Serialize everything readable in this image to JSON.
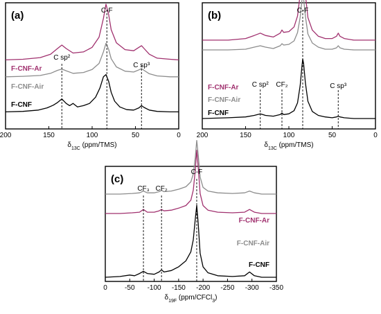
{
  "panels": [
    {
      "panel_label": "(a)",
      "xlabel_sym": "δ",
      "xlabel_sub": "13C",
      "xlabel_unit": " (ppm/TMS)",
      "peak_labels": [
        {
          "text": "C sp²",
          "x": 135
        },
        {
          "text": "C-F",
          "x": 83
        },
        {
          "text": "C sp³",
          "x": 43
        }
      ],
      "dashed_x": [
        135,
        83,
        43
      ],
      "series_labels": [
        "F-CNF-Ar",
        "F-CNF-Air",
        "F-CNF"
      ]
    },
    {
      "panel_label": "(b)",
      "xlabel_sym": "δ",
      "xlabel_sub": "13C",
      "xlabel_unit": " (ppm/TMS)",
      "peak_labels": [
        {
          "text": "C sp²",
          "x": 133
        },
        {
          "text": "CF₂",
          "x": 108
        },
        {
          "text": "C-F",
          "x": 84
        },
        {
          "text": "C sp³",
          "x": 43
        }
      ],
      "dashed_x": [
        133,
        108,
        84,
        43
      ],
      "series_labels": [
        "F-CNF-Ar",
        "F-CNF-Air",
        "F-CNF"
      ]
    },
    {
      "panel_label": "(c)",
      "xlabel_sym": "δ",
      "xlabel_sub": "19F",
      "xlabel_unit": " (ppm/CFCl",
      "xlabel_sub2": "3",
      "xlabel_end": ")",
      "peak_labels": [
        {
          "text": "CF₃",
          "x": -78
        },
        {
          "text": "CF₂",
          "x": -115
        },
        {
          "text": "C-F",
          "x": -187
        }
      ],
      "dashed_x": [
        -78,
        -115,
        -187
      ],
      "series_labels": [
        "F-CNF-Ar",
        "F-CNF-Air",
        "F-CNF"
      ]
    }
  ],
  "colors": {
    "F-CNF-Ar": "#a0306e",
    "F-CNF-Air": "#8c8c8c",
    "F-CNF": "#000000"
  },
  "chart_data": [
    {
      "type": "line",
      "xlim": [
        200,
        0
      ],
      "xticks": [
        200,
        150,
        100,
        50,
        0
      ],
      "series": [
        {
          "name": "F-CNF-Ar",
          "x": [
            200,
            180,
            160,
            148,
            140,
            135,
            130,
            122,
            110,
            100,
            92,
            87,
            84,
            81,
            78,
            72,
            62,
            52,
            46,
            43,
            40,
            34,
            25,
            10,
            0
          ],
          "y": [
            0.02,
            0.03,
            0.06,
            0.12,
            0.22,
            0.28,
            0.22,
            0.14,
            0.16,
            0.24,
            0.42,
            0.75,
            1.0,
            0.82,
            0.55,
            0.32,
            0.2,
            0.18,
            0.24,
            0.27,
            0.22,
            0.12,
            0.05,
            0.03,
            0.02
          ]
        },
        {
          "name": "F-CNF-Air",
          "x": [
            200,
            180,
            160,
            148,
            140,
            135,
            130,
            122,
            110,
            100,
            92,
            87,
            84,
            81,
            78,
            72,
            62,
            52,
            46,
            43,
            40,
            34,
            25,
            10,
            0
          ],
          "y": [
            0.02,
            0.03,
            0.05,
            0.1,
            0.17,
            0.2,
            0.16,
            0.1,
            0.12,
            0.19,
            0.33,
            0.6,
            0.8,
            0.66,
            0.44,
            0.25,
            0.15,
            0.13,
            0.18,
            0.21,
            0.17,
            0.09,
            0.04,
            0.02,
            0.02
          ]
        },
        {
          "name": "F-CNF",
          "x": [
            200,
            180,
            162,
            152,
            145,
            140,
            135,
            130,
            126,
            122,
            117,
            110,
            103,
            96,
            91,
            87,
            84,
            81,
            78,
            74,
            68,
            60,
            52,
            46,
            43,
            40,
            34,
            25,
            10,
            0
          ],
          "y": [
            0.01,
            0.02,
            0.05,
            0.1,
            0.16,
            0.22,
            0.3,
            0.2,
            0.15,
            0.2,
            0.12,
            0.15,
            0.2,
            0.34,
            0.55,
            0.8,
            0.85,
            0.7,
            0.45,
            0.25,
            0.12,
            0.06,
            0.05,
            0.1,
            0.15,
            0.11,
            0.05,
            0.02,
            0.01,
            0.01
          ]
        }
      ]
    },
    {
      "type": "line",
      "xlim": [
        200,
        0
      ],
      "xticks": [
        200,
        150,
        100,
        50,
        0
      ],
      "series": [
        {
          "name": "F-CNF-Ar",
          "x": [
            200,
            170,
            150,
            140,
            133,
            127,
            118,
            110,
            108,
            106,
            100,
            94,
            90,
            87,
            85,
            84,
            83,
            81,
            78,
            73,
            66,
            58,
            50,
            45,
            43,
            41,
            36,
            25,
            10,
            0
          ],
          "y": [
            0.01,
            0.01,
            0.03,
            0.07,
            0.1,
            0.07,
            0.05,
            0.1,
            0.14,
            0.11,
            0.12,
            0.18,
            0.32,
            0.6,
            0.88,
            1.0,
            0.92,
            0.6,
            0.3,
            0.14,
            0.06,
            0.03,
            0.03,
            0.06,
            0.1,
            0.06,
            0.03,
            0.01,
            0.01,
            0.01
          ]
        },
        {
          "name": "F-CNF-Air",
          "x": [
            200,
            170,
            150,
            140,
            133,
            127,
            118,
            110,
            108,
            106,
            100,
            94,
            90,
            87,
            85,
            84,
            83,
            81,
            78,
            73,
            66,
            58,
            50,
            45,
            43,
            41,
            36,
            25,
            10,
            0
          ],
          "y": [
            0.01,
            0.01,
            0.02,
            0.05,
            0.07,
            0.05,
            0.03,
            0.07,
            0.1,
            0.08,
            0.09,
            0.14,
            0.26,
            0.48,
            0.72,
            0.82,
            0.75,
            0.5,
            0.24,
            0.11,
            0.05,
            0.02,
            0.02,
            0.04,
            0.07,
            0.04,
            0.02,
            0.01,
            0.01,
            0.01
          ]
        },
        {
          "name": "F-CNF",
          "x": [
            200,
            170,
            150,
            140,
            133,
            127,
            118,
            110,
            108,
            106,
            100,
            94,
            90,
            87,
            85,
            84,
            83,
            81,
            78,
            73,
            66,
            58,
            50,
            45,
            43,
            41,
            36,
            25,
            10,
            0
          ],
          "y": [
            0.0,
            0.01,
            0.02,
            0.04,
            0.06,
            0.04,
            0.03,
            0.05,
            0.07,
            0.05,
            0.06,
            0.1,
            0.2,
            0.42,
            0.66,
            0.76,
            0.7,
            0.46,
            0.22,
            0.09,
            0.04,
            0.02,
            0.01,
            0.02,
            0.03,
            0.02,
            0.01,
            0.0,
            0.0,
            0.0
          ]
        }
      ]
    },
    {
      "type": "line",
      "xlim": [
        0,
        -350
      ],
      "xticks": [
        0,
        -50,
        -100,
        -150,
        -200,
        -250,
        -300,
        -350
      ],
      "series": [
        {
          "name": "F-CNF-Ar",
          "x": [
            0,
            -30,
            -55,
            -70,
            -78,
            -86,
            -100,
            -110,
            -115,
            -120,
            -135,
            -150,
            -165,
            -175,
            -180,
            -184,
            -187,
            -190,
            -194,
            -200,
            -210,
            -230,
            -260,
            -285,
            -295,
            -305,
            -320,
            -350
          ],
          "y": [
            0.0,
            0.0,
            0.01,
            0.02,
            0.06,
            0.02,
            0.02,
            0.04,
            0.06,
            0.04,
            0.05,
            0.08,
            0.12,
            0.2,
            0.35,
            0.65,
            0.95,
            0.7,
            0.3,
            0.12,
            0.05,
            0.02,
            0.01,
            0.02,
            0.06,
            0.02,
            0.0,
            0.0
          ]
        },
        {
          "name": "F-CNF-Air",
          "x": [
            0,
            -30,
            -55,
            -70,
            -78,
            -86,
            -100,
            -110,
            -115,
            -120,
            -135,
            -150,
            -165,
            -175,
            -180,
            -184,
            -187,
            -190,
            -194,
            -200,
            -210,
            -230,
            -260,
            -285,
            -295,
            -305,
            -320,
            -350
          ],
          "y": [
            0.0,
            0.0,
            0.01,
            0.02,
            0.05,
            0.02,
            0.02,
            0.04,
            0.06,
            0.04,
            0.05,
            0.08,
            0.12,
            0.2,
            0.33,
            0.6,
            0.88,
            0.65,
            0.28,
            0.11,
            0.05,
            0.02,
            0.01,
            0.02,
            0.05,
            0.02,
            0.0,
            0.0
          ]
        },
        {
          "name": "F-CNF",
          "x": [
            0,
            -30,
            -50,
            -60,
            -70,
            -78,
            -86,
            -100,
            -110,
            -115,
            -120,
            -135,
            -150,
            -165,
            -175,
            -180,
            -184,
            -187,
            -190,
            -194,
            -200,
            -210,
            -230,
            -260,
            -285,
            -295,
            -305,
            -320,
            -350
          ],
          "y": [
            0.0,
            0.01,
            0.03,
            0.02,
            0.05,
            0.08,
            0.05,
            0.04,
            0.07,
            0.1,
            0.07,
            0.09,
            0.14,
            0.22,
            0.34,
            0.5,
            0.78,
            0.96,
            0.72,
            0.32,
            0.14,
            0.06,
            0.02,
            0.01,
            0.02,
            0.07,
            0.02,
            0.0,
            0.0
          ]
        }
      ]
    }
  ]
}
